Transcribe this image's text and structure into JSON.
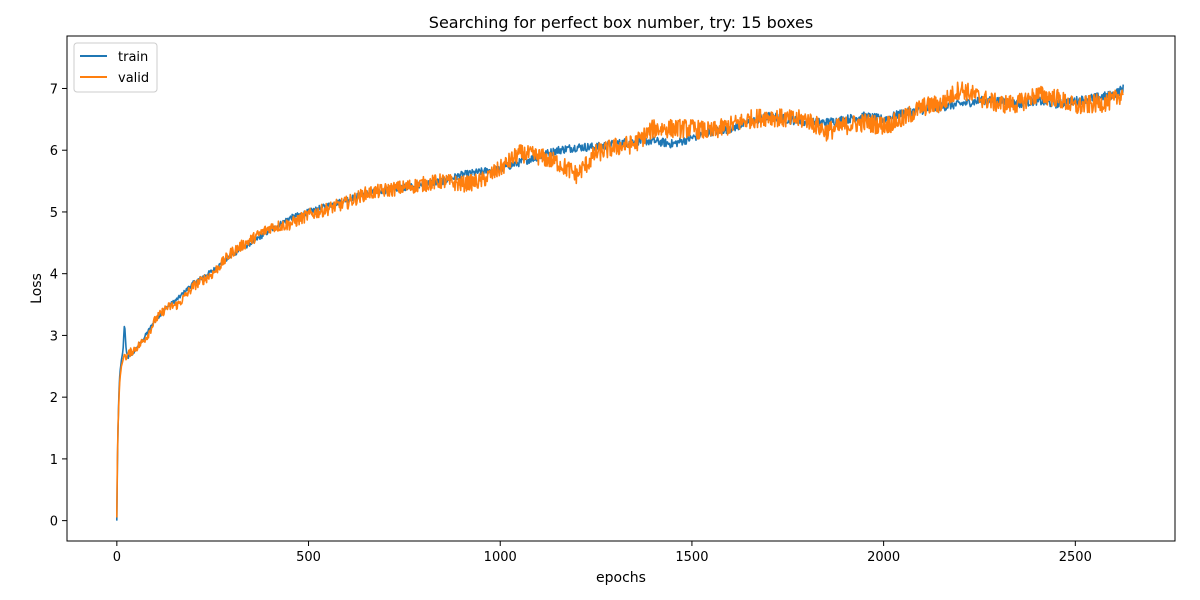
{
  "chart_data": {
    "type": "line",
    "title": "Searching for perfect box number, try: 15 boxes",
    "xlabel": "epochs",
    "ylabel": "Loss",
    "xlim": [
      -130,
      2760
    ],
    "ylim": [
      -0.33,
      7.85
    ],
    "xticks": [
      0,
      500,
      1000,
      1500,
      2000,
      2500
    ],
    "yticks": [
      0,
      1,
      2,
      3,
      4,
      5,
      6,
      7
    ],
    "grid": false,
    "legend_position": "top-left",
    "colors": {
      "train": "#1f77b4",
      "valid": "#ff7f0e",
      "axis": "#000000"
    },
    "series": [
      {
        "name": "train",
        "x": [
          0,
          2,
          5,
          8,
          12,
          16,
          20,
          25,
          30,
          40,
          60,
          80,
          100,
          130,
          160,
          200,
          250,
          300,
          350,
          400,
          450,
          500,
          550,
          600,
          650,
          700,
          750,
          800,
          850,
          900,
          950,
          1000,
          1050,
          1100,
          1150,
          1200,
          1250,
          1300,
          1350,
          1400,
          1450,
          1500,
          1550,
          1600,
          1650,
          1700,
          1750,
          1800,
          1850,
          1900,
          1950,
          2000,
          2050,
          2100,
          2150,
          2200,
          2250,
          2300,
          2350,
          2400,
          2450,
          2500,
          2550,
          2600,
          2625
        ],
        "values": [
          0.0,
          1.2,
          2.0,
          2.4,
          2.6,
          2.75,
          3.2,
          2.7,
          2.65,
          2.7,
          2.85,
          3.05,
          3.25,
          3.45,
          3.6,
          3.85,
          4.05,
          4.3,
          4.5,
          4.7,
          4.9,
          5.0,
          5.1,
          5.2,
          5.3,
          5.35,
          5.4,
          5.45,
          5.5,
          5.6,
          5.65,
          5.7,
          5.8,
          5.9,
          6.0,
          6.05,
          6.05,
          6.1,
          6.15,
          6.15,
          6.1,
          6.2,
          6.3,
          6.35,
          6.45,
          6.55,
          6.5,
          6.45,
          6.45,
          6.5,
          6.55,
          6.5,
          6.6,
          6.65,
          6.7,
          6.75,
          6.8,
          6.8,
          6.75,
          6.8,
          6.75,
          6.8,
          6.85,
          6.9,
          7.0
        ]
      },
      {
        "name": "valid",
        "x": [
          0,
          2,
          5,
          8,
          12,
          16,
          20,
          25,
          30,
          40,
          60,
          80,
          100,
          130,
          160,
          200,
          250,
          300,
          350,
          400,
          450,
          500,
          550,
          600,
          650,
          700,
          750,
          800,
          850,
          900,
          950,
          1000,
          1050,
          1100,
          1150,
          1200,
          1250,
          1300,
          1350,
          1400,
          1450,
          1500,
          1550,
          1600,
          1650,
          1700,
          1750,
          1800,
          1850,
          1900,
          1950,
          2000,
          2050,
          2100,
          2150,
          2200,
          2250,
          2300,
          2350,
          2400,
          2450,
          2500,
          2550,
          2600,
          2625
        ],
        "values": [
          0.05,
          1.3,
          1.9,
          2.3,
          2.5,
          2.6,
          2.7,
          2.65,
          2.7,
          2.75,
          2.85,
          3.0,
          3.25,
          3.45,
          3.5,
          3.8,
          4.0,
          4.35,
          4.55,
          4.75,
          4.8,
          4.95,
          5.05,
          5.15,
          5.3,
          5.35,
          5.4,
          5.45,
          5.5,
          5.45,
          5.5,
          5.7,
          5.95,
          5.9,
          5.8,
          5.6,
          5.95,
          6.05,
          6.1,
          6.35,
          6.35,
          6.35,
          6.3,
          6.4,
          6.5,
          6.55,
          6.5,
          6.5,
          6.3,
          6.4,
          6.45,
          6.4,
          6.5,
          6.7,
          6.75,
          7.0,
          6.85,
          6.75,
          6.75,
          6.9,
          6.85,
          6.7,
          6.75,
          6.8,
          6.95
        ]
      }
    ]
  }
}
